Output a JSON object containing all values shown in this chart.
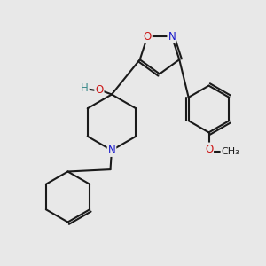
{
  "bg_color": "#e8e8e8",
  "bond_color": "#1a1a1a",
  "bond_width": 1.5,
  "N_color": "#1818cc",
  "O_color": "#cc1818",
  "H_color": "#3a8a8a",
  "font_size": 8.5,
  "figsize": [
    3.0,
    3.0
  ],
  "dpi": 100,
  "xlim": [
    0,
    10
  ],
  "ylim": [
    0,
    10
  ]
}
